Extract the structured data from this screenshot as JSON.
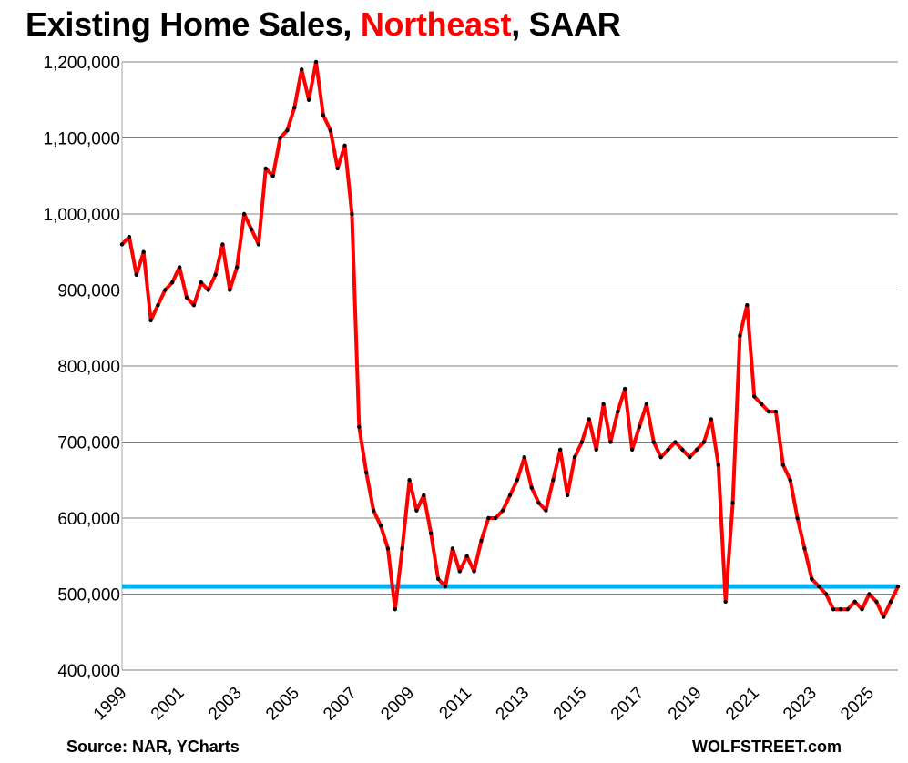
{
  "title": {
    "part1": "Existing Home Sales, ",
    "part2": "Northeast",
    "part3": ", SAAR"
  },
  "footer": {
    "source": "Source: NAR, YCharts",
    "brand": "WOLFSTREET.com"
  },
  "colors": {
    "series": "#ff0000",
    "markers": "#000000",
    "reference_line": "#00b0f0",
    "grid": "#808080",
    "title_highlight": "#ff0000"
  },
  "chart_data": {
    "type": "line",
    "title": "Existing Home Sales, Northeast, SAAR",
    "xlabel": "",
    "ylabel": "",
    "ylim": [
      400000,
      1200000
    ],
    "yticks": [
      400000,
      500000,
      600000,
      700000,
      800000,
      900000,
      1000000,
      1100000,
      1200000
    ],
    "ytick_labels": [
      "400,000",
      "500,000",
      "600,000",
      "700,000",
      "800,000",
      "900,000",
      "1,000,000",
      "1,100,000",
      "1,200,000"
    ],
    "xlim": [
      1999.0,
      2026.0
    ],
    "xticks": [
      1999,
      2001,
      2003,
      2005,
      2007,
      2009,
      2011,
      2013,
      2015,
      2017,
      2019,
      2021,
      2023,
      2025
    ],
    "xtick_labels": [
      "1999",
      "2001",
      "2003",
      "2005",
      "2007",
      "2009",
      "2011",
      "2013",
      "2015",
      "2017",
      "2019",
      "2021",
      "2023",
      "2025"
    ],
    "grid": true,
    "markers": true,
    "reference_line": {
      "y": 510000
    },
    "series": [
      {
        "x": [
          1999.0,
          1999.25,
          1999.5,
          1999.75,
          2000.0,
          2000.25,
          2000.5,
          2000.75,
          2001.0,
          2001.25,
          2001.5,
          2001.75,
          2002.0,
          2002.25,
          2002.5,
          2002.75,
          2003.0,
          2003.25,
          2003.5,
          2003.75,
          2004.0,
          2004.25,
          2004.5,
          2004.75,
          2005.0,
          2005.25,
          2005.5,
          2005.75,
          2006.0,
          2006.25,
          2006.5,
          2006.75,
          2007.0,
          2007.25,
          2007.5,
          2007.75,
          2008.0,
          2008.25,
          2008.5,
          2008.75,
          2009.0,
          2009.25,
          2009.5,
          2009.75,
          2010.0,
          2010.25,
          2010.5,
          2010.75,
          2011.0,
          2011.25,
          2011.5,
          2011.75,
          2012.0,
          2012.25,
          2012.5,
          2012.75,
          2013.0,
          2013.25,
          2013.5,
          2013.75,
          2014.0,
          2014.25,
          2014.5,
          2014.75,
          2015.0,
          2015.25,
          2015.5,
          2015.75,
          2016.0,
          2016.25,
          2016.5,
          2016.75,
          2017.0,
          2017.25,
          2017.5,
          2017.75,
          2018.0,
          2018.25,
          2018.5,
          2018.75,
          2019.0,
          2019.25,
          2019.5,
          2019.75,
          2020.0,
          2020.25,
          2020.5,
          2020.75,
          2021.0,
          2021.25,
          2021.5,
          2021.75,
          2022.0,
          2022.25,
          2022.5,
          2022.75,
          2023.0,
          2023.25,
          2023.5,
          2023.75,
          2024.0,
          2024.25,
          2024.5,
          2024.75,
          2025.0,
          2025.25,
          2025.5,
          2025.75,
          2026.0
        ],
        "values": [
          960000,
          970000,
          920000,
          950000,
          860000,
          880000,
          900000,
          910000,
          930000,
          890000,
          880000,
          910000,
          900000,
          920000,
          960000,
          900000,
          930000,
          1000000,
          980000,
          960000,
          1060000,
          1050000,
          1100000,
          1110000,
          1140000,
          1190000,
          1150000,
          1200000,
          1130000,
          1110000,
          1060000,
          1090000,
          1000000,
          720000,
          660000,
          610000,
          590000,
          560000,
          480000,
          560000,
          650000,
          610000,
          630000,
          580000,
          520000,
          510000,
          560000,
          530000,
          550000,
          530000,
          570000,
          600000,
          600000,
          610000,
          630000,
          650000,
          680000,
          640000,
          620000,
          610000,
          650000,
          690000,
          630000,
          680000,
          700000,
          730000,
          690000,
          750000,
          700000,
          740000,
          770000,
          690000,
          720000,
          750000,
          700000,
          680000,
          690000,
          700000,
          690000,
          680000,
          690000,
          700000,
          730000,
          670000,
          490000,
          620000,
          840000,
          880000,
          760000,
          750000,
          740000,
          740000,
          670000,
          650000,
          600000,
          560000,
          520000,
          510000,
          500000,
          480000,
          480000,
          480000,
          490000,
          480000,
          500000,
          490000,
          470000,
          490000,
          510000
        ]
      }
    ]
  }
}
